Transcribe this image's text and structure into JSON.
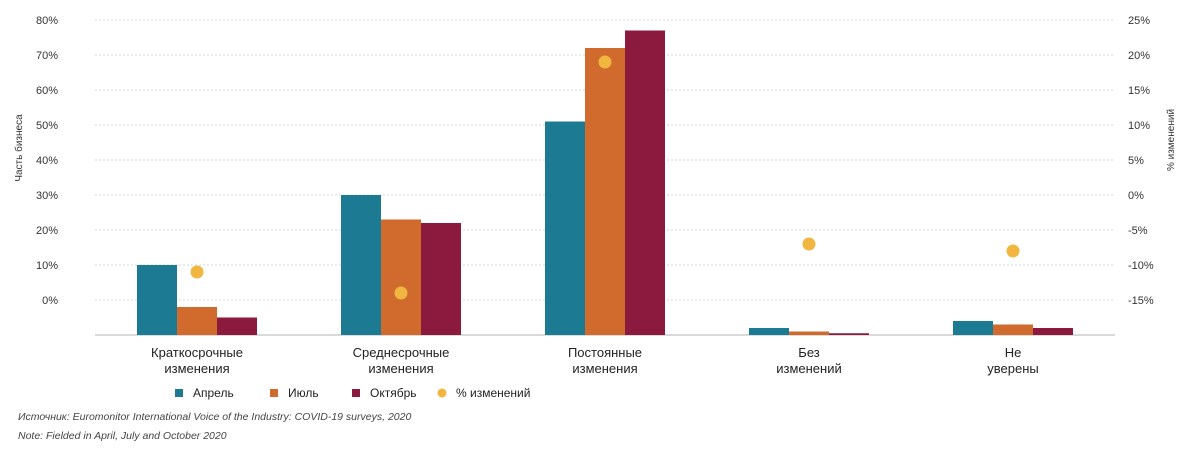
{
  "chart_data": {
    "type": "bar",
    "categories": [
      [
        "Краткосрочные",
        "изменения"
      ],
      [
        "Среднесрочные",
        "изменения"
      ],
      [
        "Постоянные",
        "изменения"
      ],
      [
        "Без",
        "изменений"
      ],
      [
        "Не",
        "уверены"
      ]
    ],
    "series": [
      {
        "name": "Апрель",
        "color": "#1c7a93",
        "values": [
          20,
          40,
          61,
          2,
          4
        ]
      },
      {
        "name": "Июль",
        "color": "#d06a2d",
        "values": [
          8,
          33,
          82,
          1,
          3
        ]
      },
      {
        "name": "Октябрь",
        "color": "#8c1a3e",
        "values": [
          5,
          32,
          87,
          0.5,
          2
        ]
      }
    ],
    "secondary_series": {
      "name": "% изменений",
      "type": "scatter",
      "color": "#f0b63f",
      "values": [
        -11,
        -14,
        19,
        -7,
        -8
      ]
    },
    "left_axis": {
      "label": "Часть бизнеса",
      "ticks": [
        "80%",
        "70%",
        "60%",
        "50%",
        "40%",
        "30%",
        "20%",
        "10%",
        "0%"
      ]
    },
    "right_axis": {
      "label": "% изменений",
      "ticks": [
        "25%",
        "20%",
        "15%",
        "10%",
        "5%",
        "0%",
        "-5%",
        "-10%",
        "-15%"
      ],
      "range": [
        -15,
        25
      ]
    },
    "grid": true,
    "legend_position": "bottom"
  },
  "footnotes": {
    "source": "Источник:  Euromonitor International Voice of the Industry: COVID-19 surveys, 2020",
    "note": "Note: Fielded in April, July and October 2020"
  }
}
